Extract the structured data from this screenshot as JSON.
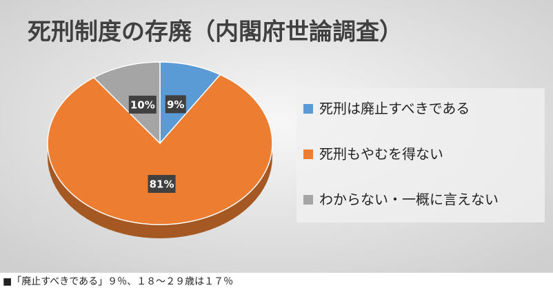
{
  "chart_data": {
    "type": "pie",
    "title": "死刑制度の存廃（内閣府世論調査）",
    "categories": [
      "死刑は廃止すべきである",
      "死刑もやむを得ない",
      "わからない・一概に言えない"
    ],
    "values": [
      9,
      81,
      10
    ],
    "value_labels": [
      "9%",
      "81%",
      "10%"
    ],
    "colors": [
      "#5b9bd5",
      "#ed7d31",
      "#a5a5a5"
    ],
    "legend": "right"
  },
  "caption": "■「廃止すべきである」９％、１８～２９歳は１７％"
}
